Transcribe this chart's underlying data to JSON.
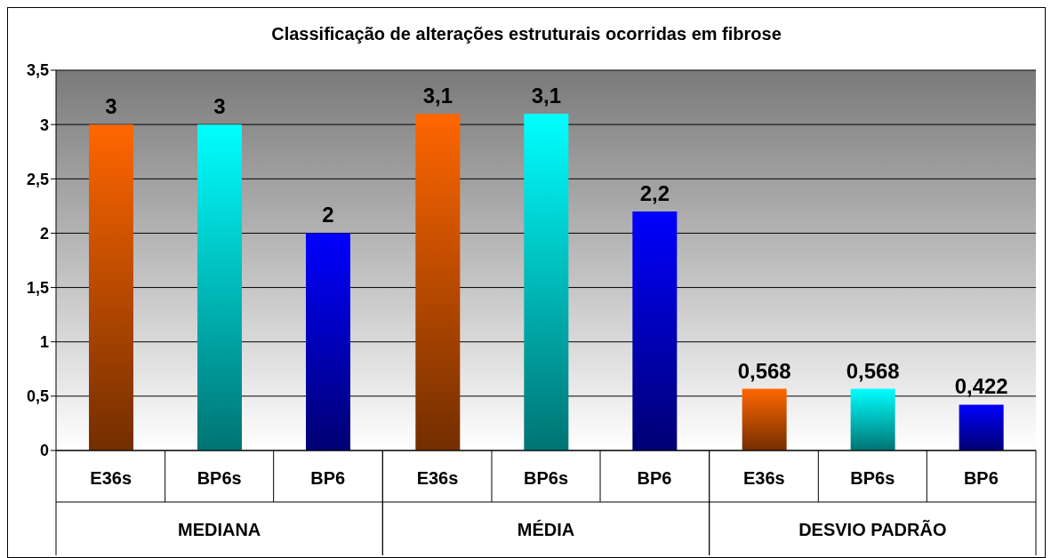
{
  "chart_data": {
    "type": "bar",
    "title": "Classificação de alterações estruturais ocorridas em fibrose",
    "categories": [
      "MEDIANA",
      "MÉDIA",
      "DESVIO PADRÃO"
    ],
    "series": [
      {
        "name": "E36s",
        "color": "#ff6600",
        "values": [
          3,
          3.1,
          0.568
        ],
        "value_labels": [
          "3",
          "3,1",
          "0,568"
        ]
      },
      {
        "name": "BP6s",
        "color": "#00ffff",
        "values": [
          3,
          3.1,
          0.568
        ],
        "value_labels": [
          "3",
          "3,1",
          "0,568"
        ]
      },
      {
        "name": "BP6",
        "color": "#0000ff",
        "values": [
          2,
          2.2,
          0.422
        ],
        "value_labels": [
          "2",
          "2,2",
          "0,422"
        ]
      }
    ],
    "ylim": [
      0,
      3.5
    ],
    "yticks": [
      0,
      {
        "value": 0.5,
        "label": "0,5"
      },
      1,
      {
        "value": 1.5,
        "label": "1,5"
      },
      2,
      {
        "value": 2.5,
        "label": "2,5"
      },
      3,
      {
        "value": 3.5,
        "label": "3,5"
      }
    ],
    "grid": "y"
  }
}
